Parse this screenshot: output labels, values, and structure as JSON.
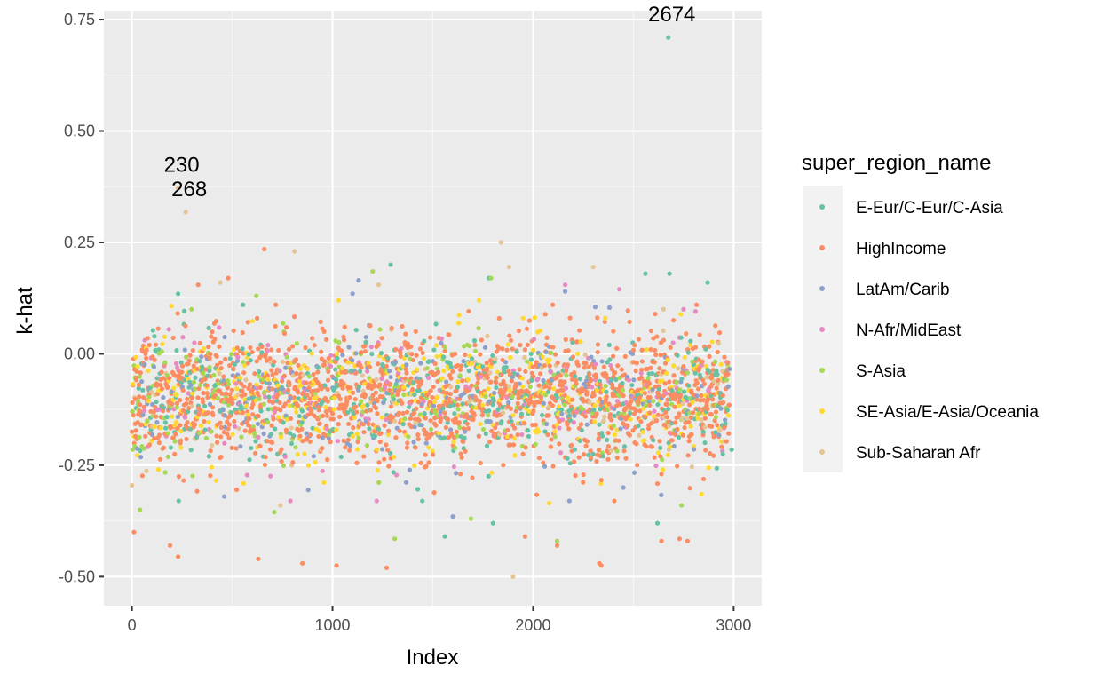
{
  "chart_data": {
    "type": "scatter",
    "title": "",
    "xlabel": "Index",
    "ylabel": "k-hat",
    "xlim": [
      -140,
      3140
    ],
    "ylim": [
      -0.565,
      0.77
    ],
    "x_ticks": [
      0,
      1000,
      2000,
      3000
    ],
    "x_tick_labels": [
      "0",
      "1000",
      "2000",
      "3000"
    ],
    "y_ticks": [
      -0.5,
      -0.25,
      0.0,
      0.25,
      0.5,
      0.75
    ],
    "y_tick_labels": [
      "-0.50",
      "-0.25",
      "0.00",
      "0.25",
      "0.50",
      "0.75"
    ],
    "grid": true,
    "legend_position": "right",
    "legend_title": "super_region_name",
    "n_points": 2980,
    "series": [
      {
        "name": "E-Eur/C-Eur/C-Asia",
        "color": "#66C2A5",
        "weight": 0.14,
        "highlight_points": [
          [
            2674,
            0.71
          ],
          [
            230,
            0.135
          ],
          [
            1290,
            0.2
          ],
          [
            1780,
            0.17
          ],
          [
            2560,
            0.18
          ],
          [
            2680,
            0.18
          ],
          [
            2870,
            0.16
          ],
          [
            1560,
            -0.41
          ],
          [
            1800,
            -0.38
          ],
          [
            2620,
            -0.38
          ],
          [
            2990,
            -0.215
          ]
        ]
      },
      {
        "name": "HighIncome",
        "color": "#FC8D62",
        "weight": 0.56,
        "highlight_points": [
          [
            660,
            0.235
          ],
          [
            480,
            0.17
          ],
          [
            330,
            0.155
          ],
          [
            10,
            -0.4
          ],
          [
            230,
            -0.455
          ],
          [
            190,
            -0.43
          ],
          [
            630,
            -0.46
          ],
          [
            850,
            -0.47
          ],
          [
            1020,
            -0.475
          ],
          [
            1270,
            -0.48
          ],
          [
            2120,
            -0.43
          ],
          [
            2330,
            -0.47
          ],
          [
            2640,
            -0.42
          ],
          [
            2770,
            -0.42
          ],
          [
            2730,
            -0.415
          ],
          [
            1960,
            -0.41
          ],
          [
            2340,
            -0.475
          ]
        ]
      },
      {
        "name": "LatAm/Carib",
        "color": "#8DA0CB",
        "weight": 0.07,
        "highlight_points": [
          [
            1130,
            0.165
          ],
          [
            1100,
            0.135
          ],
          [
            2160,
            0.14
          ],
          [
            2310,
            0.105
          ],
          [
            460,
            -0.32
          ],
          [
            2450,
            -0.3
          ],
          [
            1600,
            -0.365
          ]
        ]
      },
      {
        "name": "N-Afr/MidEast",
        "color": "#E78AC3",
        "weight": 0.06,
        "highlight_points": [
          [
            2160,
            0.155
          ],
          [
            2430,
            0.145
          ],
          [
            2750,
            0.1
          ],
          [
            2810,
            0.095
          ],
          [
            790,
            -0.33
          ],
          [
            1220,
            -0.33
          ]
        ]
      },
      {
        "name": "S-Asia",
        "color": "#A6D854",
        "weight": 0.08,
        "highlight_points": [
          [
            1200,
            0.185
          ],
          [
            1790,
            0.17
          ],
          [
            40,
            -0.35
          ],
          [
            710,
            -0.355
          ],
          [
            1310,
            -0.415
          ],
          [
            2120,
            -0.42
          ],
          [
            2740,
            -0.34
          ],
          [
            1690,
            -0.37
          ],
          [
            620,
            0.13
          ]
        ]
      },
      {
        "name": "SE-Asia/E-Asia/Oceania",
        "color": "#FFD92F",
        "weight": 0.12,
        "highlight_points": [
          [
            1030,
            0.12
          ],
          [
            1730,
            0.12
          ],
          [
            2080,
            -0.335
          ],
          [
            2840,
            -0.315
          ],
          [
            1950,
            0.08
          ],
          [
            2360,
            0.08
          ]
        ]
      },
      {
        "name": "Sub-Saharan Afr",
        "color": "#E5C494",
        "weight": 0.035,
        "highlight_points": [
          [
            230,
            0.372
          ],
          [
            268,
            0.318
          ],
          [
            1840,
            0.25
          ],
          [
            2300,
            0.195
          ],
          [
            1880,
            0.195
          ],
          [
            810,
            0.23
          ],
          [
            440,
            0.16
          ],
          [
            1230,
            0.155
          ],
          [
            2650,
            0.1
          ],
          [
            1900,
            -0.5
          ],
          [
            0,
            -0.295
          ],
          [
            740,
            -0.34
          ]
        ]
      }
    ],
    "annotations": [
      {
        "text": "230",
        "x": 230,
        "y": 0.372
      },
      {
        "text": "268",
        "x": 268,
        "y": 0.318
      },
      {
        "text": "2674",
        "x": 2674,
        "y": 0.71
      }
    ]
  }
}
